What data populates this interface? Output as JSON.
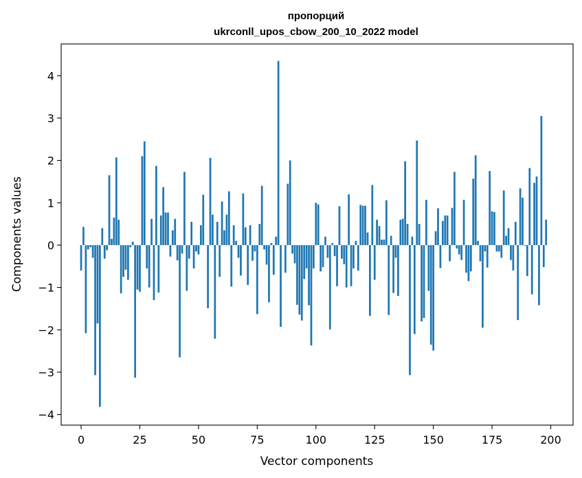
{
  "chart_data": {
    "type": "bar",
    "title_line1": "пропорций",
    "title_line2": "ukrconll_upos_cbow_200_10_2022 model",
    "xlabel": "Vector components",
    "ylabel": "Components values",
    "xlim": [
      -8.5,
      209.5
    ],
    "ylim": [
      -4.25,
      4.75
    ],
    "xticks": [
      0,
      25,
      50,
      75,
      100,
      125,
      150,
      175,
      200
    ],
    "xtick_labels": [
      "0",
      "25",
      "50",
      "75",
      "100",
      "125",
      "150",
      "175",
      "200"
    ],
    "yticks": [
      -4,
      -3,
      -2,
      -1,
      0,
      1,
      2,
      3,
      4
    ],
    "ytick_labels": [
      "−4",
      "−3",
      "−2",
      "−1",
      "0",
      "1",
      "2",
      "3",
      "4"
    ],
    "bar_color": "#1f77b4",
    "grid": false,
    "values": [
      -0.6,
      0.43,
      -2.08,
      -0.1,
      -0.05,
      -0.3,
      -3.07,
      -1.85,
      -3.82,
      0.4,
      -0.32,
      -0.12,
      1.65,
      0.15,
      0.65,
      2.07,
      0.6,
      -1.14,
      -0.75,
      -0.58,
      -0.82,
      -0.05,
      0.08,
      -3.13,
      -1.05,
      -1.1,
      2.1,
      2.45,
      -0.55,
      -1.0,
      0.62,
      -1.3,
      1.87,
      -1.12,
      0.7,
      1.37,
      0.77,
      0.77,
      -0.27,
      0.35,
      0.62,
      -0.36,
      -2.65,
      -0.2,
      1.73,
      -1.08,
      -0.32,
      0.55,
      -0.55,
      -0.15,
      -0.22,
      0.47,
      1.19,
      0.0,
      -1.49,
      2.06,
      0.72,
      -2.21,
      0.55,
      -0.75,
      1.03,
      0.35,
      0.72,
      1.27,
      -0.98,
      0.47,
      0.1,
      -0.3,
      -0.72,
      1.22,
      0.42,
      -0.94,
      0.47,
      -0.37,
      -0.15,
      -1.63,
      0.5,
      1.4,
      -0.1,
      -0.46,
      -1.35,
      0.05,
      -0.7,
      0.2,
      4.35,
      -1.93,
      0.0,
      -0.65,
      1.45,
      2.0,
      -0.2,
      -0.43,
      -1.41,
      -1.64,
      -1.78,
      -0.8,
      -0.55,
      -1.42,
      -2.37,
      -0.55,
      1.0,
      0.96,
      -0.62,
      -0.52,
      0.2,
      -0.3,
      -1.99,
      0.05,
      -0.26,
      -0.97,
      0.92,
      -0.32,
      -0.45,
      -1.0,
      1.2,
      -0.97,
      -0.55,
      0.1,
      -0.6,
      0.95,
      0.93,
      0.93,
      0.3,
      -1.67,
      1.42,
      -0.82,
      0.6,
      0.45,
      0.13,
      0.13,
      1.06,
      -1.65,
      0.22,
      -1.13,
      -0.3,
      -1.2,
      0.6,
      0.62,
      1.98,
      0.5,
      -3.07,
      0.2,
      -2.1,
      2.47,
      0.5,
      -1.8,
      -1.72,
      1.07,
      -1.08,
      -2.35,
      -2.49,
      0.33,
      0.87,
      -0.54,
      0.57,
      0.7,
      0.7,
      -0.38,
      0.88,
      1.73,
      -0.08,
      -0.22,
      -0.35,
      1.07,
      -0.65,
      -0.85,
      -0.62,
      1.57,
      2.12,
      0.1,
      -0.38,
      -1.95,
      -0.15,
      -0.53,
      1.75,
      0.8,
      0.78,
      -0.15,
      -0.15,
      -0.3,
      1.29,
      0.22,
      0.4,
      -0.35,
      -0.6,
      0.55,
      -1.77,
      1.34,
      1.12,
      -0.02,
      -0.73,
      1.82,
      -1.16,
      1.47,
      1.62,
      -1.42,
      3.05,
      -0.52,
      0.6
    ]
  }
}
